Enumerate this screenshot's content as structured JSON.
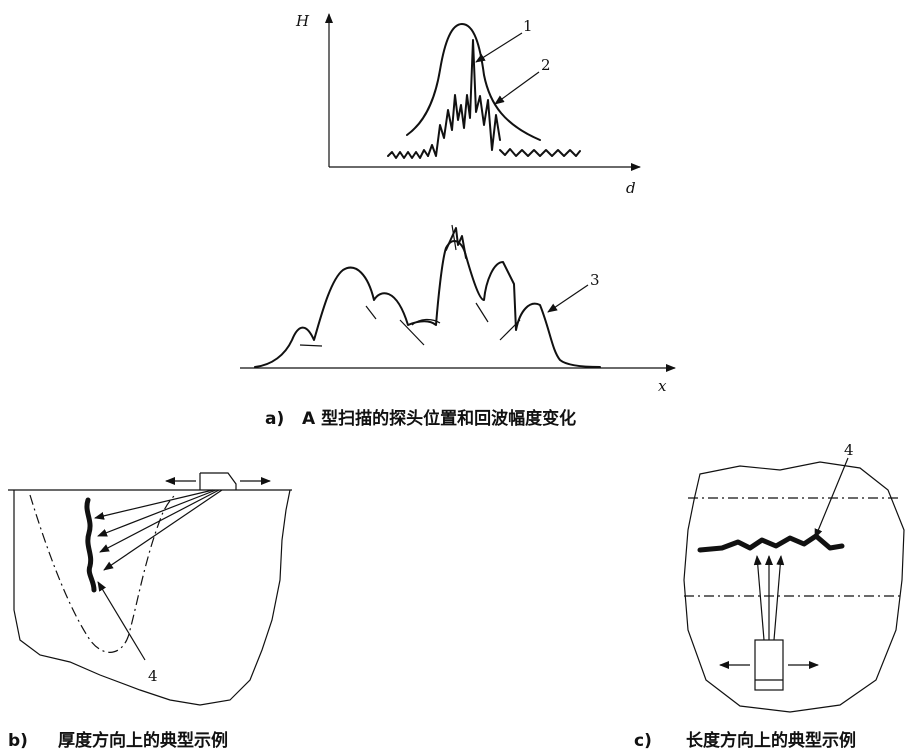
{
  "panel_a": {
    "y_axis_label": "H",
    "x_axis_label_top": "d",
    "x_axis_label_bottom": "x",
    "callouts": [
      "1",
      "2",
      "3"
    ],
    "caption_letter": "a)",
    "caption_text": "A 型扫描的探头位置和回波幅度变化"
  },
  "panel_b": {
    "callout": "4",
    "caption_letter": "b)",
    "caption_text": "厚度方向上的典型示例"
  },
  "panel_c": {
    "callout": "4",
    "caption_letter": "c)",
    "caption_text": "长度方向上的典型示例"
  }
}
